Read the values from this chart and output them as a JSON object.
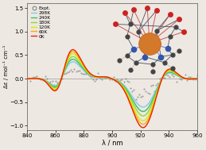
{
  "xlim": [
    840,
    960
  ],
  "ylim": [
    -1.1,
    1.6
  ],
  "xlabel": "λ / nm",
  "ylabel": "Δε / mol⁻¹ cm⁻¹",
  "yticks": [
    -1.0,
    -0.5,
    0.0,
    0.5,
    1.0,
    1.5
  ],
  "xticks": [
    840,
    860,
    880,
    900,
    920,
    940,
    960
  ],
  "temperatures": [
    "298K",
    "240K",
    "180K",
    "120K",
    "60K",
    "0K"
  ],
  "colors": {
    "298K": "#80ccee",
    "240K": "#44bb66",
    "180K": "#88dd33",
    "120K": "#ccee11",
    "60K": "#ffaa00",
    "0K": "#ee2200"
  },
  "scales": {
    "298K": 0.58,
    "240K": 0.67,
    "180K": 0.76,
    "120K": 0.86,
    "60K": 0.93,
    "0K": 1.0
  },
  "background_color": "#ede8e2",
  "inset_bg": "#dde4ee"
}
